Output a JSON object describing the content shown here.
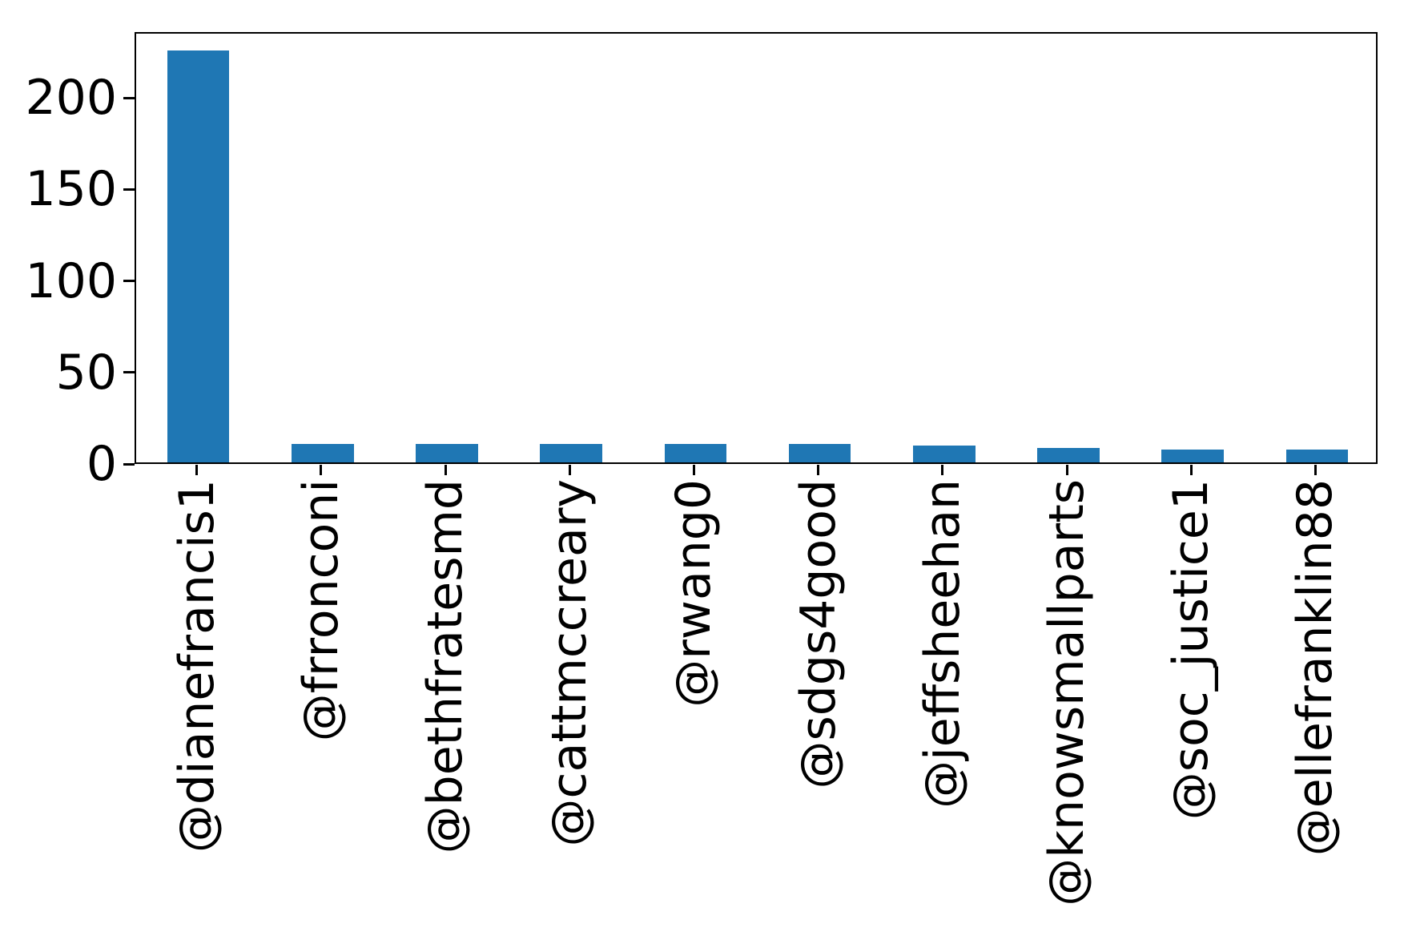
{
  "chart_data": {
    "type": "bar",
    "orientation": "vertical",
    "title": "",
    "xlabel": "",
    "ylabel": "",
    "categories": [
      "@dianefrancis1",
      "@frronconi",
      "@bethfratesmd",
      "@cattmccreary",
      "@rwang0",
      "@sdgs4good",
      "@jeffsheehan",
      "@knowsmallparts",
      "@soc_justice1",
      "@ellefranklin88"
    ],
    "values": [
      225,
      10,
      10,
      10,
      10,
      10,
      9,
      8,
      7,
      7
    ],
    "yticks": [
      0,
      50,
      100,
      150,
      200
    ],
    "ylim": [
      0,
      236
    ],
    "x_tick_label_rotation_deg": 90,
    "grid": false,
    "legend": "none",
    "bar_color": "#1f77b4",
    "axis_color": "#000000",
    "text_color": "#000000",
    "background_color": "#ffffff"
  }
}
